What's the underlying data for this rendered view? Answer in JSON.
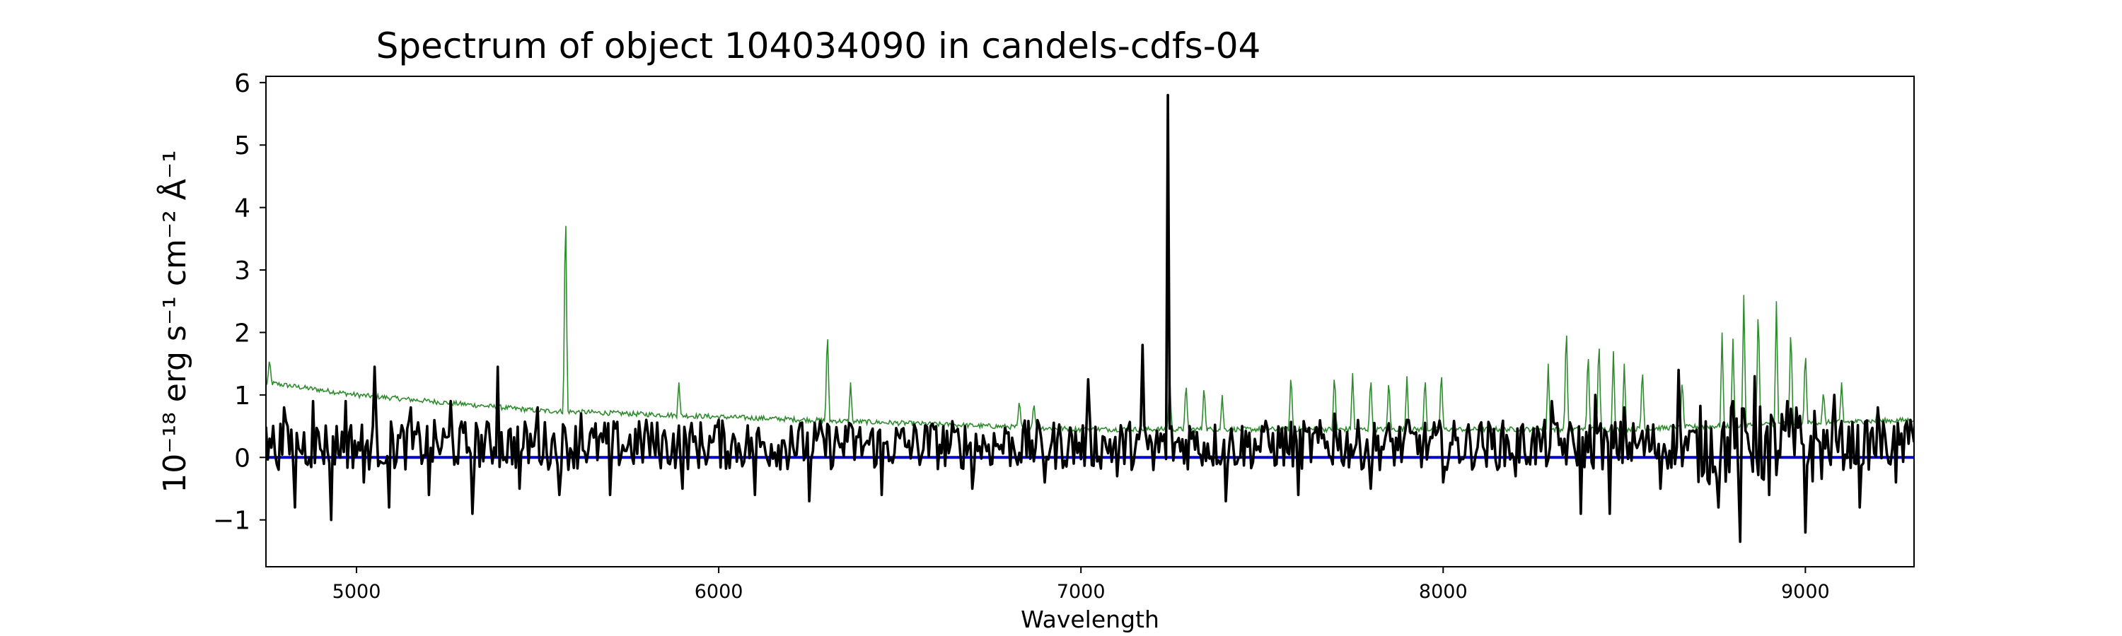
{
  "chart_data": {
    "type": "line",
    "title": "Spectrum of object 104034090 in candels-cdfs-04",
    "xlabel": "Wavelength",
    "ylabel": "10⁻¹⁸ erg s⁻¹ cm⁻² Å⁻¹",
    "xlim": [
      4750,
      9300
    ],
    "ylim": [
      -1.75,
      6.1
    ],
    "xticks": [
      5000,
      6000,
      7000,
      8000,
      9000
    ],
    "yticks": [
      -1,
      0,
      1,
      2,
      3,
      4,
      5,
      6
    ],
    "xtick_labels": [
      "5000",
      "6000",
      "7000",
      "8000",
      "9000"
    ],
    "ytick_labels": [
      "−1",
      "0",
      "1",
      "2",
      "3",
      "4",
      "5",
      "6"
    ],
    "grid": false,
    "series": [
      {
        "role": "flux",
        "color": "#000000",
        "baseline": 0.2,
        "noise": 0.4,
        "sample_points": [
          [
            4760,
            0.3
          ],
          [
            4800,
            0.8
          ],
          [
            4830,
            -0.8
          ],
          [
            4880,
            0.9
          ],
          [
            4930,
            -1.0
          ],
          [
            4970,
            0.9
          ],
          [
            5020,
            -0.4
          ],
          [
            5050,
            1.45
          ],
          [
            5090,
            -0.8
          ],
          [
            5150,
            0.8
          ],
          [
            5200,
            -0.6
          ],
          [
            5260,
            0.9
          ],
          [
            5320,
            -0.9
          ],
          [
            5390,
            1.45
          ],
          [
            5450,
            -0.5
          ],
          [
            5500,
            0.8
          ],
          [
            5560,
            -0.6
          ],
          [
            5620,
            0.7
          ],
          [
            5700,
            -0.6
          ],
          [
            5800,
            0.6
          ],
          [
            5900,
            -0.5
          ],
          [
            6000,
            0.6
          ],
          [
            6100,
            -0.6
          ],
          [
            6200,
            0.5
          ],
          [
            6250,
            -0.7
          ],
          [
            6350,
            0.5
          ],
          [
            6450,
            -0.6
          ],
          [
            6600,
            0.5
          ],
          [
            6700,
            -0.5
          ],
          [
            6800,
            0.4
          ],
          [
            6900,
            -0.4
          ],
          [
            7020,
            1.25
          ],
          [
            7100,
            -0.3
          ],
          [
            7170,
            1.8
          ],
          [
            7200,
            -0.2
          ],
          [
            7240,
            5.8
          ],
          [
            7300,
            0.5
          ],
          [
            7400,
            -0.7
          ],
          [
            7500,
            0.5
          ],
          [
            7600,
            -0.6
          ],
          [
            7700,
            0.7
          ],
          [
            7800,
            -0.5
          ],
          [
            7900,
            0.6
          ],
          [
            8000,
            -0.4
          ],
          [
            8100,
            0.5
          ],
          [
            8200,
            -0.3
          ],
          [
            8300,
            0.9
          ],
          [
            8380,
            -0.9
          ],
          [
            8420,
            1.0
          ],
          [
            8460,
            -0.9
          ],
          [
            8500,
            0.8
          ],
          [
            8600,
            -0.5
          ],
          [
            8650,
            1.4
          ],
          [
            8760,
            -0.8
          ],
          [
            8800,
            0.9
          ],
          [
            8820,
            -1.35
          ],
          [
            8860,
            1.3
          ],
          [
            8900,
            -0.6
          ],
          [
            8950,
            0.9
          ],
          [
            9000,
            -1.2
          ],
          [
            9080,
            1.0
          ],
          [
            9150,
            -0.8
          ],
          [
            9200,
            0.8
          ],
          [
            9250,
            -0.4
          ],
          [
            9290,
            0.6
          ]
        ]
      },
      {
        "role": "sky/noise",
        "color": "#2e8b2e",
        "continuum": [
          [
            4750,
            1.2
          ],
          [
            5000,
            1.0
          ],
          [
            5500,
            0.75
          ],
          [
            6000,
            0.65
          ],
          [
            6500,
            0.55
          ],
          [
            7000,
            0.45
          ],
          [
            7500,
            0.45
          ],
          [
            8000,
            0.45
          ],
          [
            8500,
            0.45
          ],
          [
            9000,
            0.55
          ],
          [
            9300,
            0.6
          ]
        ],
        "lines": [
          [
            4760,
            1.6
          ],
          [
            5577,
            4.3
          ],
          [
            5890,
            1.2
          ],
          [
            6300,
            2.15
          ],
          [
            6364,
            1.2
          ],
          [
            6830,
            0.95
          ],
          [
            6870,
            0.9
          ],
          [
            7245,
            1.3
          ],
          [
            7290,
            1.25
          ],
          [
            7340,
            1.2
          ],
          [
            7390,
            1.0
          ],
          [
            7580,
            1.4
          ],
          [
            7700,
            1.4
          ],
          [
            7750,
            1.35
          ],
          [
            7800,
            1.35
          ],
          [
            7850,
            1.3
          ],
          [
            7900,
            1.3
          ],
          [
            7950,
            1.35
          ],
          [
            7995,
            1.45
          ],
          [
            8290,
            1.5
          ],
          [
            8340,
            2.25
          ],
          [
            8400,
            1.8
          ],
          [
            8430,
            2.0
          ],
          [
            8470,
            1.7
          ],
          [
            8500,
            1.5
          ],
          [
            8550,
            1.5
          ],
          [
            8660,
            1.3
          ],
          [
            8770,
            2.0
          ],
          [
            8800,
            1.9
          ],
          [
            8830,
            2.6
          ],
          [
            8870,
            2.55
          ],
          [
            8920,
            2.5
          ],
          [
            8960,
            2.2
          ],
          [
            9000,
            1.8
          ],
          [
            9050,
            1.1
          ],
          [
            9100,
            1.2
          ],
          [
            9200,
            0.8
          ]
        ]
      },
      {
        "role": "zero",
        "color": "#0000cc",
        "value": 0
      }
    ]
  }
}
